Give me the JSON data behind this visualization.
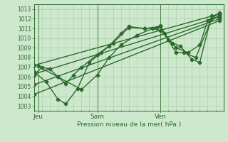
{
  "title": "",
  "xlabel": "Pression niveau de la mer( hPa )",
  "ylabel": "",
  "bg_color": "#cde8cd",
  "grid_color": "#aaccaa",
  "line_color": "#2d6a2d",
  "marker": "D",
  "markersize": 2.5,
  "linewidth": 1.0,
  "ylim": [
    1002.5,
    1013.5
  ],
  "xlim": [
    0,
    24
  ],
  "yticks": [
    1003,
    1004,
    1005,
    1006,
    1007,
    1008,
    1009,
    1010,
    1011,
    1012,
    1013
  ],
  "xtick_positions": [
    0.5,
    8,
    16
  ],
  "xtick_labels": [
    "Jeu",
    "Sam",
    "Ven"
  ],
  "vlines": [
    0.5,
    8,
    16
  ],
  "series": [
    [
      0.0,
      1006.2,
      1.0,
      1007.0,
      2.0,
      1006.8,
      3.0,
      1006.0,
      4.0,
      1005.3,
      5.0,
      1006.2,
      6.0,
      1007.0,
      8.0,
      1008.3,
      9.5,
      1009.2,
      11.0,
      1010.5,
      12.0,
      1011.2,
      14.0,
      1011.0,
      15.5,
      1011.1,
      16.0,
      1011.3,
      16.5,
      1010.5,
      17.5,
      1009.5,
      18.5,
      1009.2,
      20.0,
      1007.8,
      21.0,
      1007.5,
      22.5,
      1012.3,
      23.5,
      1012.5
    ],
    [
      0.0,
      1006.5,
      1.5,
      1005.5,
      3.0,
      1003.7,
      4.0,
      1003.2,
      5.5,
      1004.8,
      7.0,
      1007.5,
      8.5,
      1008.5,
      10.0,
      1009.5,
      12.0,
      1011.1,
      14.0,
      1011.0,
      16.0,
      1011.2,
      17.0,
      1009.8,
      18.0,
      1008.5,
      19.0,
      1008.5,
      20.5,
      1008.0,
      22.5,
      1012.0,
      23.5,
      1012.3
    ],
    [
      0.5,
      1007.1,
      3.0,
      1006.0,
      6.0,
      1004.7,
      8.0,
      1006.2,
      9.5,
      1008.0,
      11.0,
      1009.3,
      13.0,
      1010.3,
      15.0,
      1011.0,
      16.0,
      1010.8,
      18.0,
      1009.0,
      19.5,
      1008.5,
      21.0,
      1009.3,
      22.0,
      1011.8,
      23.5,
      1012.6
    ],
    [
      0.0,
      1007.2,
      23.5,
      1012.5
    ],
    [
      0.0,
      1006.3,
      23.5,
      1012.2
    ],
    [
      0.0,
      1005.2,
      23.5,
      1012.0
    ],
    [
      0.0,
      1004.2,
      23.5,
      1011.8
    ]
  ]
}
